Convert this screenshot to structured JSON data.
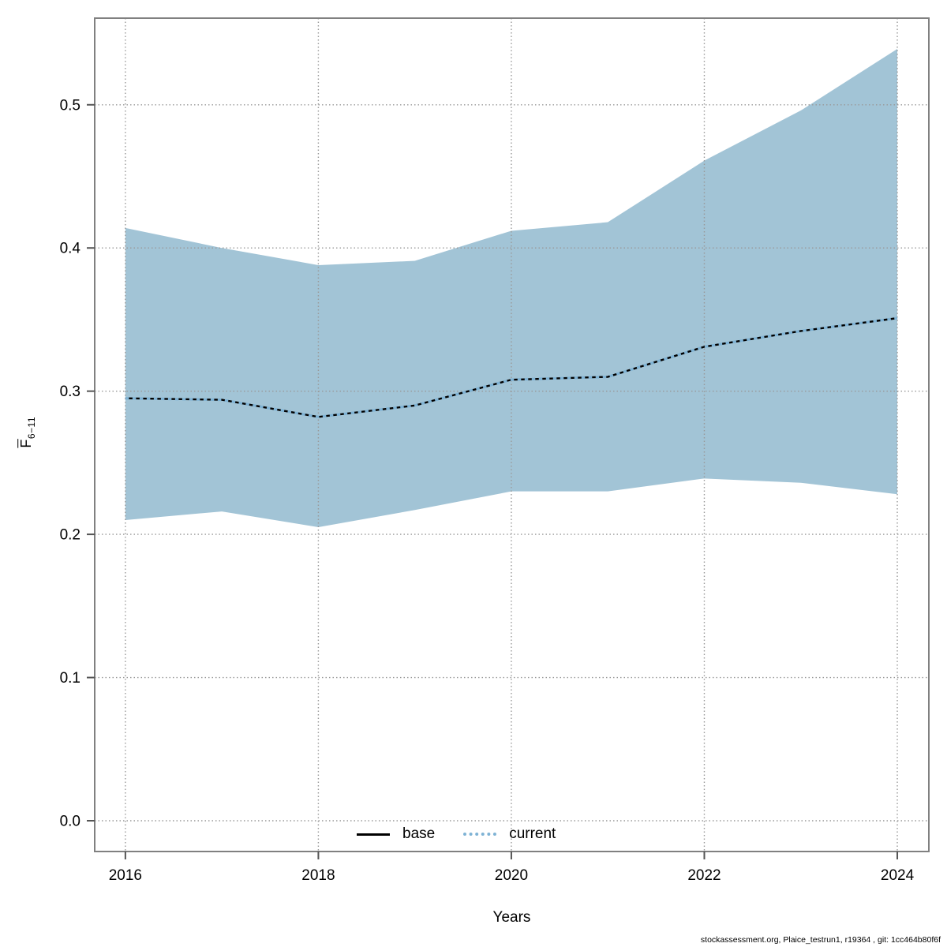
{
  "chart_data": {
    "type": "area",
    "title": "",
    "xlabel": "Years",
    "ylabel": "F(bar) 6-11",
    "ylabel_base": "F",
    "ylabel_sub": "6−11",
    "x": [
      2016,
      2017,
      2018,
      2019,
      2020,
      2021,
      2022,
      2023,
      2024
    ],
    "band": {
      "name": "confidence-interval",
      "fill": "#a2c4d6",
      "upper": [
        0.414,
        0.4,
        0.388,
        0.391,
        0.412,
        0.418,
        0.461,
        0.496,
        0.539
      ],
      "lower": [
        0.21,
        0.216,
        0.205,
        0.217,
        0.23,
        0.23,
        0.239,
        0.236,
        0.228
      ]
    },
    "series": [
      {
        "name": "base",
        "style": "solid",
        "color": "#000000",
        "values": [
          0.295,
          0.294,
          0.282,
          0.29,
          0.308,
          0.31,
          0.331,
          0.342,
          0.351
        ]
      },
      {
        "name": "current",
        "style": "dotted",
        "color": "#7fb3d5",
        "values": [
          0.295,
          0.294,
          0.282,
          0.29,
          0.308,
          0.31,
          0.331,
          0.342,
          0.351
        ]
      }
    ],
    "xticks": [
      2016,
      2018,
      2020,
      2022,
      2024
    ],
    "yticks": [
      0.0,
      0.1,
      0.2,
      0.3,
      0.4,
      0.5
    ],
    "xlim": [
      2015.682,
      2024.327
    ],
    "ylim": [
      -0.0215,
      0.5605
    ],
    "grid": "dotted",
    "grid_color": "#999999",
    "frame_color": "#808080",
    "tick_color": "#555555",
    "legend": {
      "position": "bottom-center",
      "items": [
        {
          "label": "base",
          "style": "solid",
          "color": "#000000"
        },
        {
          "label": "current",
          "style": "dotted",
          "color": "#7fb3d5"
        }
      ]
    }
  },
  "footer": {
    "text": "stockassessment.org, Plaice_testrun1, r19364 , git: 1cc464b80f6f"
  }
}
